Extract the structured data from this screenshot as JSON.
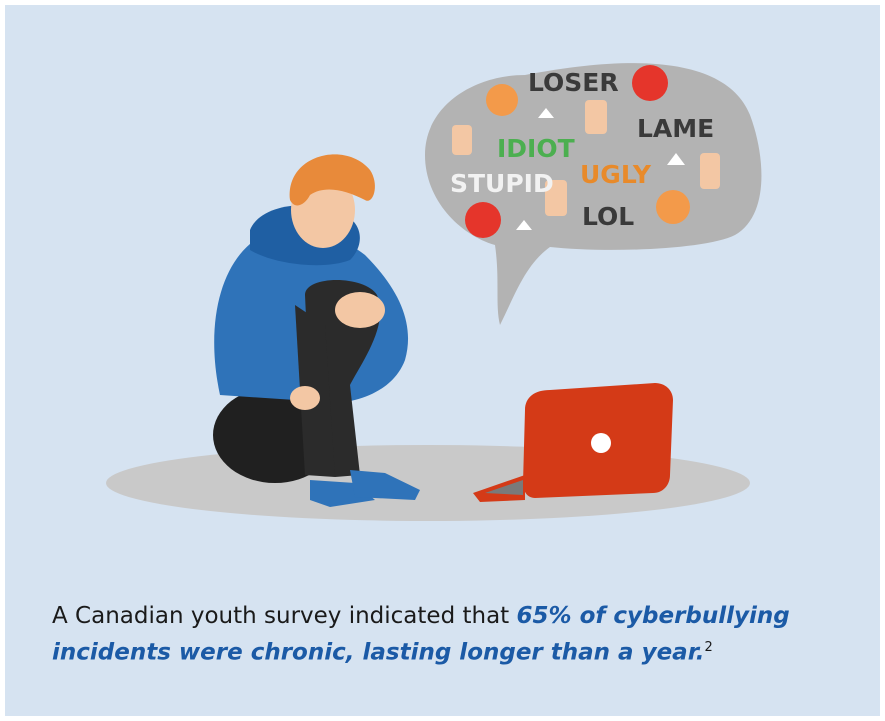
{
  "bubble": {
    "words": [
      "LOSER",
      "LAME",
      "IDIOT",
      "UGLY",
      "STUPID",
      "LOL"
    ]
  },
  "caption": {
    "text": "A Canadian youth survey indicated that",
    "emphasis": "65% of cyberbullying incidents were chronic, lasting longer than a year.",
    "footnote": "2"
  }
}
